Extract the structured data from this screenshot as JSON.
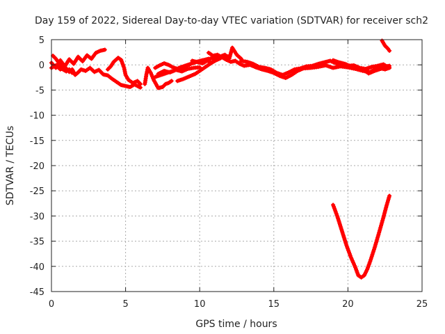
{
  "chart_data": {
    "type": "scatter",
    "title": "Day 159 of 2022, Sidereal Day-to-day VTEC variation (SDTVAR) for receiver sch2",
    "xlabel": "GPS time / hours",
    "ylabel": "SDTVAR / TECUs",
    "xlim": [
      0,
      25
    ],
    "ylim": [
      -45,
      5
    ],
    "xticks": [
      0,
      5,
      10,
      15,
      20,
      25
    ],
    "yticks": [
      5,
      0,
      -5,
      -10,
      -15,
      -20,
      -25,
      -30,
      -35,
      -40,
      -45
    ],
    "grid": true,
    "marker": "+",
    "series": [
      {
        "name": "sch2",
        "color": "#ff0000",
        "segments": [
          [
            [
              0.0,
              0.4
            ],
            [
              0.3,
              -0.6
            ],
            [
              0.6,
              0.9
            ],
            [
              0.9,
              -0.3
            ],
            [
              1.2,
              1.1
            ],
            [
              1.5,
              0.2
            ],
            [
              1.8,
              1.6
            ],
            [
              2.1,
              0.7
            ],
            [
              2.4,
              1.9
            ],
            [
              2.7,
              1.2
            ],
            [
              3.0,
              2.4
            ],
            [
              3.3,
              2.8
            ],
            [
              3.6,
              3.0
            ]
          ],
          [
            [
              0.0,
              -0.6
            ],
            [
              0.3,
              -0.1
            ],
            [
              0.6,
              -0.9
            ],
            [
              0.9,
              -0.4
            ],
            [
              1.2,
              -1.4
            ],
            [
              1.4,
              -0.9
            ],
            [
              1.6,
              -2.0
            ],
            [
              1.8,
              -1.5
            ],
            [
              2.0,
              -0.9
            ],
            [
              2.3,
              -1.2
            ],
            [
              2.6,
              -0.6
            ],
            [
              2.9,
              -1.4
            ],
            [
              3.2,
              -1.0
            ],
            [
              3.5,
              -1.9
            ],
            [
              3.8,
              -2.1
            ],
            [
              4.1,
              -2.8
            ],
            [
              4.4,
              -3.4
            ],
            [
              4.7,
              -4.0
            ],
            [
              5.0,
              -4.2
            ],
            [
              5.3,
              -4.4
            ],
            [
              5.6,
              -3.9
            ],
            [
              6.0,
              -4.5
            ]
          ],
          [
            [
              3.8,
              -0.9
            ],
            [
              4.0,
              -0.3
            ],
            [
              4.2,
              0.6
            ],
            [
              4.5,
              1.4
            ],
            [
              4.7,
              1.0
            ],
            [
              4.9,
              -0.6
            ],
            [
              5.0,
              -2.0
            ],
            [
              5.2,
              -3.0
            ],
            [
              5.5,
              -3.6
            ],
            [
              5.8,
              -3.2
            ],
            [
              6.0,
              -3.8
            ]
          ],
          [
            [
              0.1,
              1.8
            ],
            [
              0.3,
              1.2
            ],
            [
              0.5,
              0.4
            ],
            [
              0.7,
              -0.8
            ],
            [
              1.0,
              -1.3
            ],
            [
              1.2,
              -0.9
            ],
            [
              1.4,
              -1.6
            ]
          ],
          [
            [
              6.3,
              -3.8
            ],
            [
              6.4,
              -2.0
            ],
            [
              6.5,
              -0.6
            ],
            [
              6.7,
              -1.6
            ],
            [
              6.9,
              -3.0
            ],
            [
              7.2,
              -4.6
            ],
            [
              7.5,
              -4.4
            ],
            [
              7.7,
              -3.8
            ],
            [
              7.9,
              -3.6
            ],
            [
              8.1,
              -3.2
            ]
          ],
          [
            [
              7.0,
              -0.6
            ],
            [
              7.3,
              -0.1
            ],
            [
              7.6,
              0.3
            ],
            [
              7.9,
              0.0
            ],
            [
              8.2,
              -0.5
            ],
            [
              8.6,
              -0.9
            ],
            [
              9.0,
              -0.4
            ],
            [
              9.4,
              0.2
            ],
            [
              9.8,
              0.6
            ],
            [
              10.2,
              0.9
            ],
            [
              10.6,
              1.2
            ],
            [
              11.0,
              1.3
            ],
            [
              11.3,
              1.5
            ],
            [
              11.6,
              1.9
            ],
            [
              12.0,
              1.6
            ]
          ],
          [
            [
              7.2,
              -1.8
            ],
            [
              7.6,
              -1.2
            ],
            [
              8.0,
              -1.5
            ],
            [
              8.4,
              -1.0
            ],
            [
              8.8,
              -1.3
            ],
            [
              9.2,
              -0.8
            ],
            [
              9.6,
              -0.6
            ],
            [
              10.0,
              -0.5
            ]
          ],
          [
            [
              7.0,
              -2.4
            ],
            [
              7.4,
              -2.0
            ],
            [
              7.8,
              -1.6
            ],
            [
              8.2,
              -1.2
            ],
            [
              8.6,
              -0.6
            ],
            [
              9.0,
              -0.2
            ],
            [
              9.4,
              0.2
            ],
            [
              9.8,
              0.6
            ],
            [
              10.2,
              0.9
            ]
          ],
          [
            [
              8.5,
              -3.2
            ],
            [
              8.9,
              -2.8
            ],
            [
              9.3,
              -2.3
            ],
            [
              9.7,
              -1.8
            ],
            [
              10.0,
              -1.2
            ],
            [
              10.3,
              -0.6
            ],
            [
              10.6,
              0.0
            ],
            [
              10.9,
              0.6
            ],
            [
              11.1,
              1.0
            ]
          ],
          [
            [
              9.5,
              0.8
            ],
            [
              9.9,
              0.5
            ],
            [
              10.2,
              0.3
            ],
            [
              10.5,
              0.8
            ],
            [
              10.8,
              0.4
            ],
            [
              11.1,
              0.9
            ],
            [
              11.4,
              1.3
            ],
            [
              11.7,
              2.0
            ],
            [
              12.0,
              1.3
            ],
            [
              12.2,
              3.4
            ],
            [
              12.5,
              2.0
            ],
            [
              12.8,
              1.2
            ]
          ],
          [
            [
              10.6,
              2.4
            ],
            [
              10.9,
              1.8
            ],
            [
              11.2,
              2.0
            ],
            [
              11.5,
              1.5
            ],
            [
              11.8,
              1.0
            ],
            [
              12.1,
              0.6
            ],
            [
              12.4,
              0.8
            ],
            [
              12.7,
              0.2
            ],
            [
              13.0,
              -0.2
            ],
            [
              13.4,
              0.0
            ],
            [
              13.8,
              -0.5
            ],
            [
              14.2,
              -0.9
            ],
            [
              14.6,
              -1.2
            ],
            [
              15.0,
              -1.6
            ],
            [
              15.4,
              -2.2
            ],
            [
              15.8,
              -2.6
            ],
            [
              16.2,
              -2.0
            ],
            [
              16.6,
              -1.2
            ],
            [
              17.0,
              -0.7
            ],
            [
              17.5,
              -0.6
            ],
            [
              18.0,
              -0.4
            ],
            [
              18.5,
              -0.1
            ],
            [
              19.0,
              -0.6
            ],
            [
              19.5,
              -0.3
            ],
            [
              20.0,
              -0.5
            ],
            [
              20.5,
              -0.8
            ],
            [
              21.0,
              -1.2
            ],
            [
              21.5,
              -1.4
            ],
            [
              22.0,
              -0.6
            ],
            [
              22.5,
              -0.9
            ],
            [
              22.8,
              -0.6
            ]
          ],
          [
            [
              12.8,
              0.8
            ],
            [
              13.2,
              0.6
            ],
            [
              13.6,
              0.2
            ],
            [
              14.0,
              -0.4
            ],
            [
              14.4,
              -0.6
            ],
            [
              14.8,
              -0.9
            ],
            [
              15.2,
              -1.6
            ],
            [
              15.6,
              -2.0
            ],
            [
              16.0,
              -1.5
            ],
            [
              16.4,
              -0.9
            ],
            [
              16.8,
              -0.7
            ],
            [
              17.2,
              -0.3
            ],
            [
              17.6,
              -0.2
            ],
            [
              18.0,
              0.2
            ],
            [
              18.4,
              0.5
            ],
            [
              18.8,
              0.8
            ],
            [
              19.2,
              0.3
            ],
            [
              19.6,
              0.0
            ],
            [
              20.0,
              -0.2
            ],
            [
              20.4,
              -0.1
            ],
            [
              20.8,
              -0.6
            ],
            [
              21.2,
              -0.8
            ],
            [
              21.6,
              -0.4
            ],
            [
              22.0,
              -0.2
            ],
            [
              22.4,
              0.1
            ],
            [
              22.8,
              -0.6
            ]
          ],
          [
            [
              19.0,
              0.9
            ],
            [
              19.4,
              0.5
            ],
            [
              19.8,
              0.2
            ],
            [
              20.2,
              -0.3
            ],
            [
              20.6,
              -0.5
            ],
            [
              21.0,
              -0.9
            ],
            [
              21.4,
              -1.7
            ],
            [
              21.8,
              -1.2
            ],
            [
              22.2,
              -0.8
            ],
            [
              22.6,
              -0.3
            ],
            [
              22.8,
              -0.2
            ]
          ],
          [
            [
              22.3,
              4.8
            ],
            [
              22.5,
              3.8
            ],
            [
              22.7,
              3.2
            ],
            [
              22.8,
              2.8
            ]
          ],
          [
            [
              19.0,
              -27.8
            ],
            [
              19.3,
              -30.2
            ],
            [
              19.6,
              -33.0
            ],
            [
              19.9,
              -35.8
            ],
            [
              20.2,
              -38.2
            ],
            [
              20.5,
              -40.2
            ],
            [
              20.7,
              -41.8
            ],
            [
              20.9,
              -42.2
            ],
            [
              21.1,
              -41.8
            ],
            [
              21.3,
              -40.6
            ],
            [
              21.5,
              -39.0
            ],
            [
              21.8,
              -36.3
            ],
            [
              22.1,
              -33.3
            ],
            [
              22.4,
              -30.2
            ],
            [
              22.6,
              -28.0
            ],
            [
              22.8,
              -26.0
            ]
          ]
        ]
      }
    ]
  },
  "colors": {
    "series": "#ff0000",
    "axis": "#222222",
    "grid": "#aaaaaa"
  }
}
